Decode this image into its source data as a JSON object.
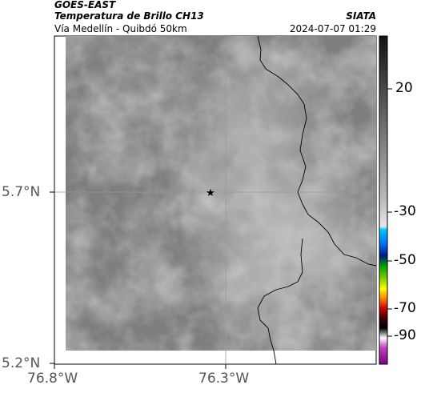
{
  "header": {
    "satellite": "GOES-EAST",
    "product": "Temperatura de Brillo CH13",
    "route": "Vía Medellín - Quibdó 50km",
    "agency": "SIATA",
    "datetime": "2024-07-07 01:29"
  },
  "map": {
    "lat_labels": [
      "5.7°N",
      "5.2°N"
    ],
    "lon_labels": [
      "76.8°W",
      "76.3°W"
    ],
    "marker": "star-icon"
  },
  "colorbar": {
    "tick_labels": [
      "20",
      "-30",
      "-50",
      "-70",
      "-90"
    ]
  },
  "colors": {
    "background_gray": "#7e7e7e",
    "cloud_gray": "#b8b8b8",
    "border_line": "#000000"
  }
}
